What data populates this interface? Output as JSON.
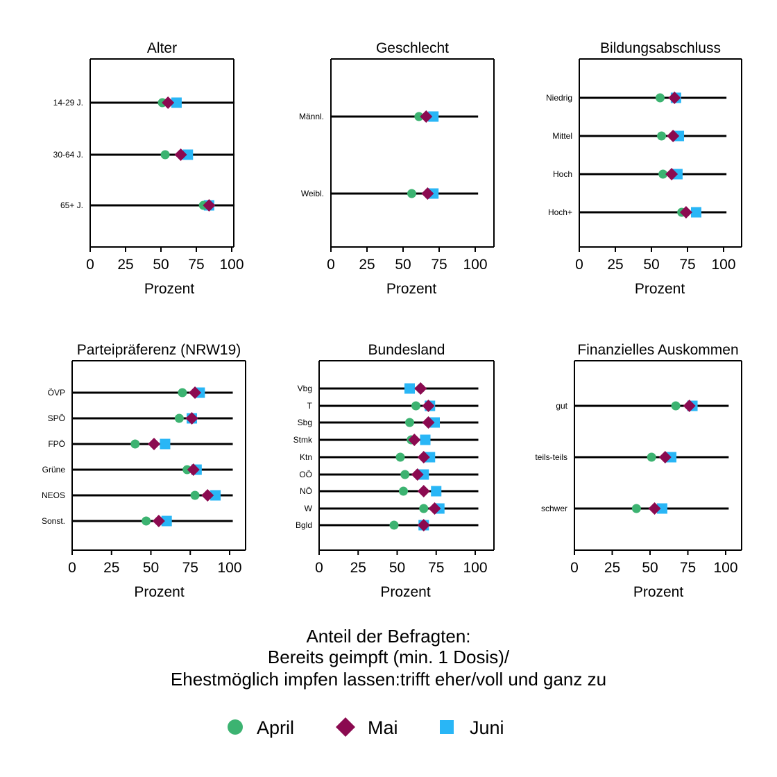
{
  "colors": {
    "April": "#3cb371",
    "Mai": "#8b0a50",
    "Juni": "#29b6f6"
  },
  "caption": {
    "line1": "Anteil der Befragten:",
    "line2": "Bereits geimpft (min. 1 Dosis)/",
    "line3": "Ehestmöglich impfen lassen:trifft eher/voll und ganz zu"
  },
  "legend": [
    {
      "name": "April",
      "marker": "circle"
    },
    {
      "name": "Mai",
      "marker": "diamond"
    },
    {
      "name": "Juni",
      "marker": "square"
    }
  ],
  "chart_data": [
    {
      "type": "dot",
      "title": "Alter",
      "xlabel": "Prozent",
      "xlim": [
        0,
        100
      ],
      "xticks": [
        0,
        25,
        50,
        75,
        100
      ],
      "categories": [
        "14-29 J.",
        "30-64 J.",
        "65+ J."
      ],
      "series": [
        {
          "name": "April",
          "values": [
            51,
            53,
            80
          ]
        },
        {
          "name": "Mai",
          "values": [
            55,
            64,
            84
          ]
        },
        {
          "name": "Juni",
          "values": [
            61,
            69,
            84
          ]
        }
      ]
    },
    {
      "type": "dot",
      "title": "Geschlecht",
      "xlabel": "Prozent",
      "xlim": [
        0,
        100
      ],
      "xticks": [
        0,
        25,
        50,
        75,
        100
      ],
      "categories": [
        "Männl.",
        "Weibl."
      ],
      "series": [
        {
          "name": "April",
          "values": [
            61,
            56
          ]
        },
        {
          "name": "Mai",
          "values": [
            66,
            67
          ]
        },
        {
          "name": "Juni",
          "values": [
            71,
            71
          ]
        }
      ]
    },
    {
      "type": "dot",
      "title": "Bildungsabschluss",
      "xlabel": "Prozent",
      "xlim": [
        0,
        100
      ],
      "xticks": [
        0,
        25,
        50,
        75,
        100
      ],
      "categories": [
        "Niedrig",
        "Mittel",
        "Hoch",
        "Hoch+"
      ],
      "series": [
        {
          "name": "April",
          "values": [
            56,
            57,
            58,
            71
          ]
        },
        {
          "name": "Mai",
          "values": [
            66,
            65,
            64,
            74
          ]
        },
        {
          "name": "Juni",
          "values": [
            67,
            69,
            68,
            81
          ]
        }
      ]
    },
    {
      "type": "dot",
      "title": "Parteipräferenz (NRW19)",
      "xlabel": "Prozent",
      "xlim": [
        0,
        100
      ],
      "xticks": [
        0,
        25,
        50,
        75,
        100
      ],
      "categories": [
        "ÖVP",
        "SPÖ",
        "FPÖ",
        "Grüne",
        "NEOS",
        "Sonst."
      ],
      "series": [
        {
          "name": "April",
          "values": [
            70,
            68,
            40,
            73,
            78,
            47
          ]
        },
        {
          "name": "Mai",
          "values": [
            78,
            76,
            52,
            77,
            86,
            55
          ]
        },
        {
          "name": "Juni",
          "values": [
            81,
            76,
            59,
            79,
            91,
            60
          ]
        }
      ]
    },
    {
      "type": "dot",
      "title": "Bundesland",
      "xlabel": "Prozent",
      "xlim": [
        0,
        100
      ],
      "xticks": [
        0,
        25,
        50,
        75,
        100
      ],
      "categories": [
        "Vbg",
        "T",
        "Sbg",
        "Stmk",
        "Ktn",
        "OÖ",
        "NÖ",
        "W",
        "Bgld"
      ],
      "series": [
        {
          "name": "April",
          "values": [
            65,
            62,
            58,
            59,
            52,
            55,
            54,
            67,
            48
          ]
        },
        {
          "name": "Mai",
          "values": [
            65,
            70,
            70,
            61,
            67,
            63,
            67,
            74,
            67
          ]
        },
        {
          "name": "Juni",
          "values": [
            58,
            71,
            74,
            68,
            71,
            67,
            75,
            77,
            67
          ]
        }
      ]
    },
    {
      "type": "dot",
      "title": "Finanzielles Auskommen",
      "xlabel": "Prozent",
      "xlim": [
        0,
        100
      ],
      "xticks": [
        0,
        25,
        50,
        75,
        100
      ],
      "categories": [
        "gut",
        "teils-teils",
        "schwer"
      ],
      "series": [
        {
          "name": "April",
          "values": [
            67,
            51,
            41
          ]
        },
        {
          "name": "Mai",
          "values": [
            76,
            60,
            53
          ]
        },
        {
          "name": "Juni",
          "values": [
            78,
            64,
            58
          ]
        }
      ]
    }
  ]
}
